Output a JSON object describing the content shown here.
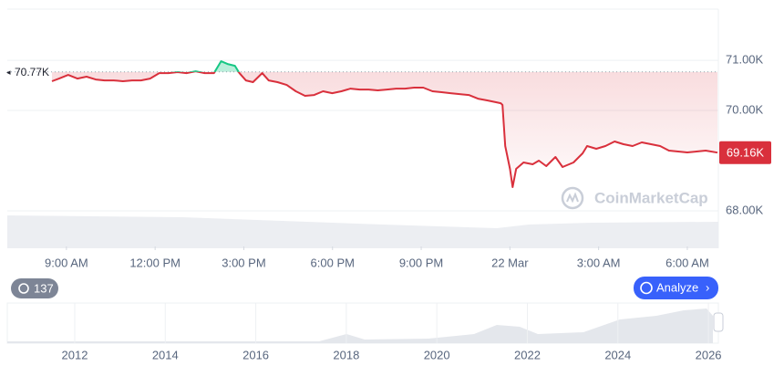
{
  "chart_data": {
    "type": "line",
    "x": [
      8.51,
      8.75,
      9.06,
      9.37,
      9.68,
      9.99,
      10.29,
      10.6,
      10.91,
      11.22,
      11.52,
      11.83,
      12.14,
      12.45,
      12.76,
      13.06,
      13.37,
      13.68,
      13.99,
      14.23,
      14.45,
      14.7,
      14.85,
      15.07,
      15.31,
      15.62,
      15.84,
      16.14,
      16.45,
      16.76,
      17.07,
      17.38,
      17.68,
      17.99,
      18.3,
      18.61,
      18.92,
      19.22,
      19.53,
      19.84,
      20.15,
      20.45,
      20.76,
      21.07,
      21.38,
      21.69,
      21.99,
      22.3,
      22.61,
      22.92,
      23.23,
      23.53,
      23.69,
      23.75,
      23.84,
      24.0,
      24.09,
      24.21,
      24.46,
      24.77,
      24.98,
      25.23,
      25.54,
      25.78,
      26.15,
      26.46,
      26.61,
      26.92,
      27.23,
      27.54,
      27.84,
      28.15,
      28.46,
      28.77,
      29.08,
      29.38,
      29.69,
      30.0,
      30.31,
      30.62,
      31.02
    ],
    "series": [
      {
        "color": "#d9303c",
        "above_color": "#16c784",
        "values": [
          70582,
          70636,
          70709,
          70636,
          70673,
          70618,
          70600,
          70600,
          70582,
          70600,
          70600,
          70636,
          70745,
          70745,
          70764,
          70745,
          70782,
          70745,
          70745,
          70982,
          70927,
          70891,
          70745,
          70600,
          70564,
          70745,
          70600,
          70564,
          70509,
          70382,
          70291,
          70309,
          70382,
          70345,
          70382,
          70436,
          70418,
          70418,
          70400,
          70418,
          70436,
          70436,
          70455,
          70455,
          70382,
          70364,
          70345,
          70327,
          70309,
          70236,
          70200,
          70164,
          70145,
          70109,
          69291,
          68836,
          68473,
          68836,
          68964,
          68927,
          69000,
          68891,
          69073,
          68873,
          68964,
          69145,
          69291,
          69236,
          69291,
          69382,
          69327,
          69291,
          69364,
          69327,
          69291,
          69200,
          69182,
          69164,
          69182,
          69200,
          69160
        ]
      }
    ],
    "xlim": [
      7,
      31.05
    ],
    "xticks": [
      {
        "value": 9,
        "label": "9:00 AM"
      },
      {
        "value": 12,
        "label": "12:00 PM"
      },
      {
        "value": 15,
        "label": "3:00 PM"
      },
      {
        "value": 18,
        "label": "6:00 PM"
      },
      {
        "value": 21,
        "label": "9:00 PM"
      },
      {
        "value": 24,
        "label": "22 Mar"
      },
      {
        "value": 27,
        "label": "3:00 AM"
      },
      {
        "value": 30,
        "label": "6:00 AM"
      }
    ],
    "ylim": [
      67290,
      72020
    ],
    "yticks": [
      {
        "value": 68000,
        "label": "68.00K"
      },
      {
        "value": 70000,
        "label": "70.00K"
      },
      {
        "value": 71000,
        "label": "71.00K"
      }
    ],
    "reference": {
      "value": 70770,
      "label": "70.77K"
    },
    "current_price": {
      "value": 69160,
      "label": "69.16K"
    },
    "grid": true,
    "watermark": "CoinMarketCap",
    "navigator": {
      "xlim": [
        2010.51,
        2026.22
      ],
      "xticks": [
        2012,
        2014,
        2016,
        2018,
        2020,
        2022,
        2024,
        2026
      ]
    },
    "history_badge": "137",
    "analyze_button": "Analyze"
  }
}
